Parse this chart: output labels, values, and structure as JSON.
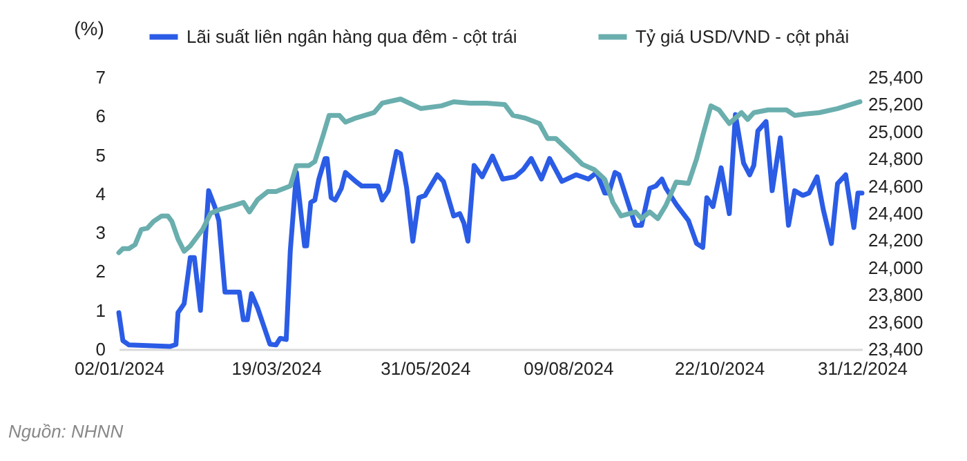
{
  "chart_data": {
    "type": "line",
    "ylabel": "(%)",
    "annotations": [
      "Nguồn: NHNN"
    ],
    "legend": "top",
    "grid": false,
    "line_style": "solid",
    "marker": "none",
    "xlim": [
      "2024-01-02",
      "2024-12-31"
    ],
    "xticks": [
      {
        "value": "2024-01-02",
        "label": "02/01/2024"
      },
      {
        "value": "2024-03-19",
        "label": "19/03/2024"
      },
      {
        "value": "2024-05-31",
        "label": "31/05/2024"
      },
      {
        "value": "2024-08-09",
        "label": "09/08/2024"
      },
      {
        "value": "2024-10-22",
        "label": "22/10/2024"
      },
      {
        "value": "2024-12-31",
        "label": "31/12/2024"
      }
    ],
    "ylim": [
      0,
      7
    ],
    "yticks": [
      0,
      1,
      2,
      3,
      4,
      5,
      6,
      7
    ],
    "y2lim": [
      23400,
      25400
    ],
    "y2ticks": [
      {
        "value": 23400,
        "label": "23,400"
      },
      {
        "value": 23600,
        "label": "23,600"
      },
      {
        "value": 23800,
        "label": "23,800"
      },
      {
        "value": 24000,
        "label": "24,000"
      },
      {
        "value": 24200,
        "label": "24,200"
      },
      {
        "value": 24400,
        "label": "24,400"
      },
      {
        "value": 24600,
        "label": "24,600"
      },
      {
        "value": 24800,
        "label": "24,800"
      },
      {
        "value": 25000,
        "label": "25,000"
      },
      {
        "value": 25200,
        "label": "25,200"
      },
      {
        "value": 25400,
        "label": "25,400"
      }
    ],
    "series": [
      {
        "name": "Lãi suất liên ngân hàng qua đêm - cột trái",
        "color": "#2b5ce6",
        "axis": "y",
        "x": [
          "2024-01-02",
          "2024-01-04",
          "2024-01-07",
          "2024-01-27",
          "2024-01-30",
          "2024-01-31",
          "2024-02-03",
          "2024-02-06",
          "2024-02-08",
          "2024-02-11",
          "2024-02-15",
          "2024-02-18",
          "2024-02-20",
          "2024-02-23",
          "2024-03-01",
          "2024-03-03",
          "2024-03-05",
          "2024-03-07",
          "2024-03-10",
          "2024-03-16",
          "2024-03-19",
          "2024-03-21",
          "2024-03-24",
          "2024-03-26",
          "2024-03-29",
          "2024-04-02",
          "2024-04-03",
          "2024-04-05",
          "2024-04-07",
          "2024-04-09",
          "2024-04-12",
          "2024-04-13",
          "2024-04-15",
          "2024-04-17",
          "2024-04-20",
          "2024-04-22",
          "2024-04-27",
          "2024-04-30",
          "2024-05-08",
          "2024-05-10",
          "2024-05-13",
          "2024-05-17",
          "2024-05-19",
          "2024-05-22",
          "2024-05-25",
          "2024-05-28",
          "2024-05-31",
          "2024-06-06",
          "2024-06-09",
          "2024-06-14",
          "2024-06-17",
          "2024-06-19",
          "2024-06-21",
          "2024-06-24",
          "2024-06-28",
          "2024-07-03",
          "2024-07-08",
          "2024-07-14",
          "2024-07-18",
          "2024-07-22",
          "2024-07-27",
          "2024-07-31",
          "2024-08-06",
          "2024-08-13",
          "2024-08-19",
          "2024-08-23",
          "2024-08-27",
          "2024-08-29",
          "2024-09-01",
          "2024-09-03",
          "2024-09-08",
          "2024-09-11",
          "2024-09-14",
          "2024-09-18",
          "2024-09-21",
          "2024-09-24",
          "2024-09-26",
          "2024-10-01",
          "2024-10-07",
          "2024-10-11",
          "2024-10-14",
          "2024-10-16",
          "2024-10-19",
          "2024-10-23",
          "2024-10-27",
          "2024-10-30",
          "2024-11-03",
          "2024-11-06",
          "2024-11-08",
          "2024-11-10",
          "2024-11-14",
          "2024-11-17",
          "2024-11-21",
          "2024-11-25",
          "2024-11-28",
          "2024-12-02",
          "2024-12-05",
          "2024-12-09",
          "2024-12-12",
          "2024-12-16",
          "2024-12-19",
          "2024-12-23",
          "2024-12-27",
          "2024-12-29",
          "2024-12-31"
        ],
        "values": [
          0.94,
          0.22,
          0.11,
          0.07,
          0.12,
          0.94,
          1.17,
          2.36,
          2.36,
          1.0,
          4.08,
          3.67,
          3.31,
          1.47,
          1.47,
          0.76,
          0.76,
          1.43,
          1.06,
          0.13,
          0.11,
          0.28,
          0.25,
          2.54,
          4.55,
          2.66,
          2.66,
          3.78,
          3.84,
          4.38,
          4.91,
          4.91,
          3.9,
          3.84,
          4.14,
          4.55,
          4.32,
          4.2,
          4.2,
          3.84,
          4.08,
          5.09,
          5.03,
          4.14,
          2.78,
          3.9,
          3.96,
          4.49,
          4.32,
          3.43,
          3.49,
          3.25,
          2.78,
          4.73,
          4.44,
          4.97,
          4.38,
          4.44,
          4.62,
          4.91,
          4.38,
          4.91,
          4.32,
          4.49,
          4.38,
          4.55,
          4.02,
          4.02,
          4.55,
          4.49,
          3.67,
          3.19,
          3.19,
          4.14,
          4.2,
          4.38,
          4.14,
          3.73,
          3.31,
          2.72,
          2.62,
          3.9,
          3.67,
          4.67,
          3.49,
          6.04,
          4.79,
          4.49,
          4.73,
          5.62,
          5.86,
          4.08,
          5.44,
          3.19,
          4.08,
          3.96,
          4.02,
          4.44,
          3.6,
          2.72,
          4.26,
          4.49,
          3.13,
          4.02,
          4.02
        ]
      },
      {
        "name": "Tỷ giá USD/VND - cột phải",
        "color": "#6aaeae",
        "axis": "y2",
        "x": [
          "2024-01-02",
          "2024-01-04",
          "2024-01-07",
          "2024-01-10",
          "2024-01-13",
          "2024-01-16",
          "2024-01-19",
          "2024-01-23",
          "2024-01-26",
          "2024-01-28",
          "2024-01-31",
          "2024-02-03",
          "2024-02-06",
          "2024-02-12",
          "2024-02-16",
          "2024-02-21",
          "2024-02-28",
          "2024-03-03",
          "2024-03-06",
          "2024-03-10",
          "2024-03-15",
          "2024-03-19",
          "2024-03-26",
          "2024-03-29",
          "2024-04-04",
          "2024-04-07",
          "2024-04-11",
          "2024-04-14",
          "2024-04-19",
          "2024-04-22",
          "2024-04-27",
          "2024-05-06",
          "2024-05-10",
          "2024-05-19",
          "2024-05-29",
          "2024-06-08",
          "2024-06-14",
          "2024-06-22",
          "2024-06-30",
          "2024-07-09",
          "2024-07-13",
          "2024-07-19",
          "2024-07-26",
          "2024-07-30",
          "2024-08-03",
          "2024-08-10",
          "2024-08-16",
          "2024-08-22",
          "2024-08-27",
          "2024-08-31",
          "2024-09-04",
          "2024-09-11",
          "2024-09-14",
          "2024-09-18",
          "2024-09-22",
          "2024-09-26",
          "2024-10-01",
          "2024-10-07",
          "2024-10-11",
          "2024-10-14",
          "2024-10-18",
          "2024-10-22",
          "2024-10-27",
          "2024-11-02",
          "2024-11-05",
          "2024-11-08",
          "2024-11-15",
          "2024-11-24",
          "2024-11-28",
          "2024-12-03",
          "2024-12-10",
          "2024-12-19",
          "2024-12-30"
        ],
        "values": [
          24110,
          24140,
          24140,
          24170,
          24280,
          24290,
          24340,
          24380,
          24380,
          24340,
          24210,
          24120,
          24160,
          24280,
          24400,
          24430,
          24460,
          24480,
          24410,
          24500,
          24560,
          24560,
          24600,
          24750,
          24750,
          24780,
          24970,
          25120,
          25120,
          25070,
          25100,
          25140,
          25210,
          25240,
          25170,
          25190,
          25220,
          25210,
          25210,
          25200,
          25120,
          25100,
          25060,
          24950,
          24950,
          24850,
          24760,
          24720,
          24650,
          24480,
          24380,
          24410,
          24360,
          24410,
          24360,
          24460,
          24630,
          24620,
          24800,
          24970,
          25190,
          25160,
          25060,
          25140,
          25090,
          25140,
          25160,
          25160,
          25120,
          25130,
          25140,
          25170,
          25220
        ]
      }
    ]
  }
}
